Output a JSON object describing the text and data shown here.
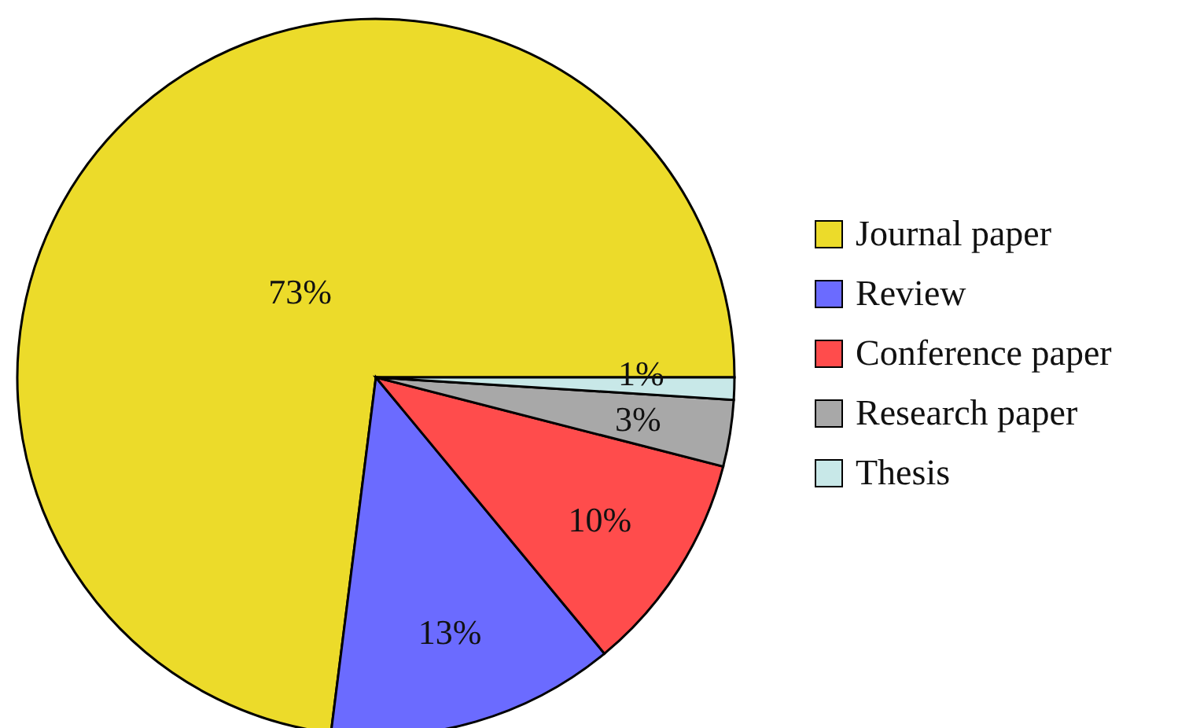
{
  "chart_data": {
    "type": "pie",
    "categories": [
      "Journal paper",
      "Review",
      "Conference paper",
      "Research paper",
      "Thesis"
    ],
    "values": [
      73,
      13,
      10,
      3,
      1
    ],
    "colors": [
      "#ecdb2a",
      "#6b6bff",
      "#ff4c4c",
      "#a8a8a8",
      "#c8e8e8"
    ],
    "value_labels": [
      "73%",
      "13%",
      "10%",
      "3%",
      "1%"
    ],
    "legend": "right"
  }
}
